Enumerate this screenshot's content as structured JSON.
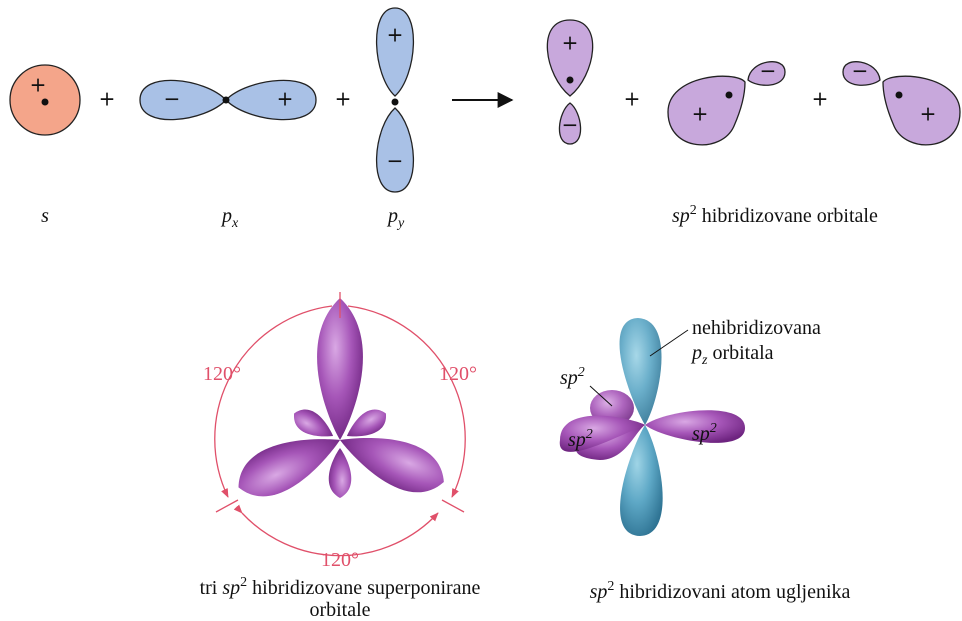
{
  "signs": {
    "s": [
      "+"
    ],
    "px": [
      "−",
      "+"
    ],
    "py": [
      "+",
      "−"
    ],
    "hybrid1": [
      "+",
      "−"
    ],
    "hybrid2": [
      "+",
      "−"
    ],
    "hybrid3": [
      "−",
      "+"
    ]
  },
  "operators": [
    "+",
    "+",
    "+",
    "+"
  ],
  "labels": {
    "s": "s",
    "px": {
      "base": "p",
      "sub": "x"
    },
    "py": {
      "base": "p",
      "sub": "y"
    },
    "hybrid": {
      "base": "sp",
      "sup": "2",
      "rest": " hibridizovane orbitale"
    }
  },
  "angles": [
    "120°",
    "120°",
    "120°"
  ],
  "atom_labels": {
    "pz": {
      "line1": "nehibridizovana",
      "base": "p",
      "sub": "z",
      "rest": " orbitala"
    },
    "sp2": [
      {
        "base": "sp",
        "sup": "2"
      },
      {
        "base": "sp",
        "sup": "2"
      },
      {
        "base": "sp",
        "sup": "2"
      }
    ]
  },
  "captions": {
    "left": {
      "pre": "tri ",
      "base": "sp",
      "sup": "2",
      "rest": " hibridizovane superponirane",
      "line2": "orbitale"
    },
    "right": {
      "base": "sp",
      "sup": "2",
      "rest": " hibridizovani atom ugljenika"
    }
  }
}
